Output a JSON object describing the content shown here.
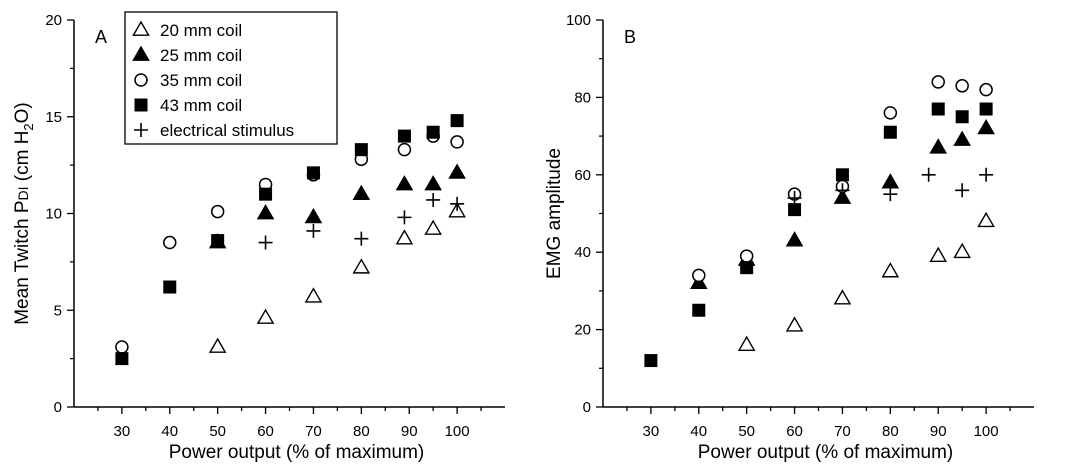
{
  "chart_data": [
    {
      "type": "scatter",
      "panel_label": "A",
      "title": "",
      "xlabel": "Power output (% of maximum)",
      "ylabel_main": "Mean Twitch P",
      "ylabel_sub": "DI",
      "ylabel_unit_open": " (cm H",
      "ylabel_unit_sub": "2",
      "ylabel_unit_close": "O)",
      "xlim": [
        20,
        110
      ],
      "ylim": [
        0,
        20
      ],
      "xticks": [
        30,
        40,
        50,
        60,
        70,
        80,
        90,
        100
      ],
      "yticks": [
        0,
        5,
        10,
        15,
        20
      ],
      "grid": false,
      "legend_position": "top-left",
      "series": [
        {
          "name": "20 mm coil",
          "marker": "open-triangle",
          "x": [
            50,
            60,
            70,
            80,
            89,
            95,
            100
          ],
          "y": [
            3.1,
            4.6,
            5.7,
            7.2,
            8.7,
            9.2,
            10.1
          ]
        },
        {
          "name": "25 mm coil",
          "marker": "filled-triangle",
          "x": [
            50,
            60,
            70,
            80,
            89,
            95,
            100
          ],
          "y": [
            8.5,
            10.0,
            9.8,
            11.0,
            11.5,
            11.5,
            12.1
          ]
        },
        {
          "name": "35 mm coil",
          "marker": "open-circle",
          "x": [
            30,
            40,
            50,
            60,
            70,
            80,
            89,
            95,
            100
          ],
          "y": [
            3.1,
            8.5,
            10.1,
            11.5,
            12.0,
            12.8,
            13.3,
            14.0,
            13.7
          ]
        },
        {
          "name": "43 mm coil",
          "marker": "filled-square",
          "x": [
            30,
            40,
            50,
            60,
            70,
            80,
            89,
            95,
            100
          ],
          "y": [
            2.5,
            6.2,
            8.6,
            11.0,
            12.1,
            13.3,
            14.0,
            14.2,
            14.8
          ]
        },
        {
          "name": "electrical stimulus",
          "marker": "plus",
          "x": [
            60,
            70,
            80,
            89,
            95,
            100
          ],
          "y": [
            8.5,
            9.1,
            8.7,
            9.8,
            10.7,
            10.5
          ]
        }
      ]
    },
    {
      "type": "scatter",
      "panel_label": "B",
      "title": "",
      "xlabel": "Power output (% of maximum)",
      "ylabel": "EMG amplitude",
      "xlim": [
        20,
        110
      ],
      "ylim": [
        0,
        100
      ],
      "xticks": [
        30,
        40,
        50,
        60,
        70,
        80,
        90,
        100
      ],
      "yticks": [
        0,
        20,
        40,
        60,
        80,
        100
      ],
      "grid": false,
      "series": [
        {
          "name": "20 mm coil",
          "marker": "open-triangle",
          "x": [
            50,
            60,
            70,
            80,
            90,
            95,
            100
          ],
          "y": [
            16,
            21,
            28,
            35,
            39,
            40,
            48
          ]
        },
        {
          "name": "25 mm coil",
          "marker": "filled-triangle",
          "x": [
            40,
            50,
            60,
            70,
            80,
            90,
            95,
            100
          ],
          "y": [
            32,
            38,
            43,
            54,
            58,
            67,
            69,
            72
          ]
        },
        {
          "name": "35 mm coil",
          "marker": "open-circle",
          "x": [
            40,
            50,
            60,
            70,
            80,
            90,
            95,
            100
          ],
          "y": [
            34,
            39,
            55,
            57,
            76,
            84,
            83,
            82
          ]
        },
        {
          "name": "43 mm coil",
          "marker": "filled-square",
          "x": [
            30,
            40,
            50,
            60,
            70,
            80,
            90,
            95,
            100
          ],
          "y": [
            12,
            25,
            36,
            51,
            60,
            71,
            77,
            75,
            77
          ]
        },
        {
          "name": "electrical stimulus",
          "marker": "plus",
          "x": [
            60,
            70,
            80,
            88,
            95,
            100
          ],
          "y": [
            54,
            56,
            55,
            60,
            56,
            60
          ]
        }
      ]
    }
  ]
}
